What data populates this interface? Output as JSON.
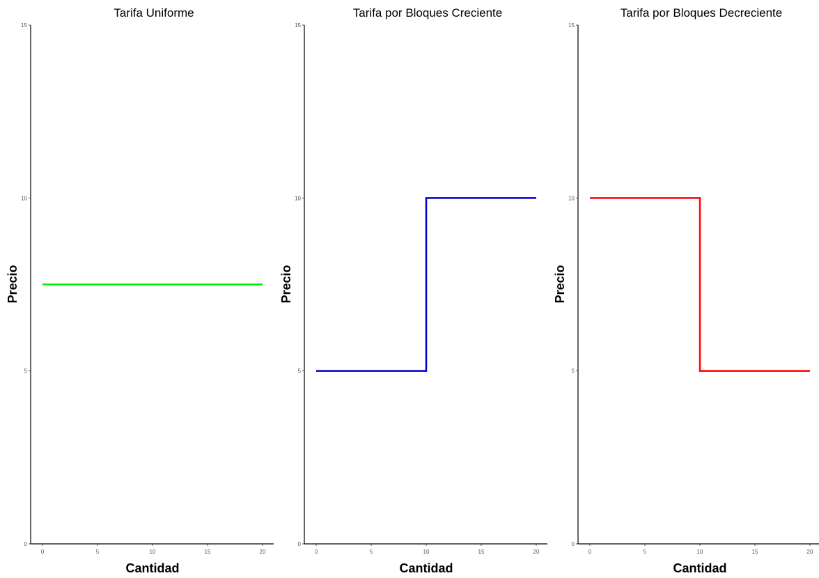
{
  "chart_data": [
    {
      "type": "line",
      "title": "Tarifa Uniforme",
      "xlabel": "Cantidad",
      "ylabel": "Precio",
      "xlim": [
        0,
        20
      ],
      "ylim": [
        0,
        15
      ],
      "xticks": [
        0,
        5,
        10,
        15,
        20
      ],
      "yticks": [
        0,
        5,
        10,
        15
      ],
      "grid": false,
      "series": [
        {
          "color": "#00ee00",
          "x": [
            0,
            20
          ],
          "y": [
            7.5,
            7.5
          ]
        }
      ]
    },
    {
      "type": "line",
      "title": "Tarifa por Bloques Creciente",
      "xlabel": "Cantidad",
      "ylabel": "Precio",
      "xlim": [
        0,
        20
      ],
      "ylim": [
        0,
        15
      ],
      "xticks": [
        0,
        5,
        10,
        15,
        20
      ],
      "yticks": [
        0,
        5,
        10,
        15
      ],
      "grid": false,
      "series": [
        {
          "color": "#0000cc",
          "x": [
            0,
            10,
            10,
            20
          ],
          "y": [
            5,
            5,
            10,
            10
          ]
        }
      ]
    },
    {
      "type": "line",
      "title": "Tarifa por Bloques Decreciente",
      "xlabel": "Cantidad",
      "ylabel": "Precio",
      "xlim": [
        0,
        20
      ],
      "ylim": [
        0,
        15
      ],
      "xticks": [
        0,
        5,
        10,
        15,
        20
      ],
      "yticks": [
        0,
        5,
        10,
        15
      ],
      "grid": false,
      "series": [
        {
          "color": "#ff0000",
          "x": [
            0,
            10,
            10,
            20
          ],
          "y": [
            10,
            10,
            5,
            5
          ]
        }
      ]
    }
  ]
}
